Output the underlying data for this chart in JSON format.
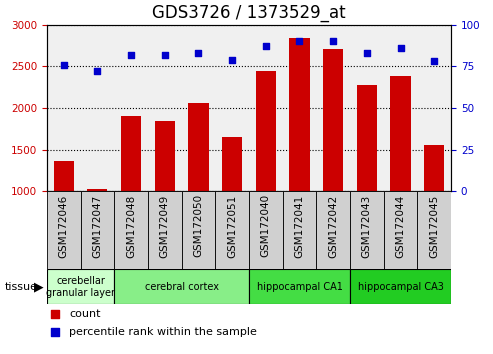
{
  "title": "GDS3726 / 1373529_at",
  "samples": [
    "GSM172046",
    "GSM172047",
    "GSM172048",
    "GSM172049",
    "GSM172050",
    "GSM172051",
    "GSM172040",
    "GSM172041",
    "GSM172042",
    "GSM172043",
    "GSM172044",
    "GSM172045"
  ],
  "counts": [
    1360,
    1030,
    1900,
    1840,
    2060,
    1650,
    2440,
    2840,
    2710,
    2280,
    2390,
    1550
  ],
  "percentiles": [
    76,
    72,
    82,
    82,
    83,
    79,
    87,
    90,
    90,
    83,
    86,
    78
  ],
  "bar_color": "#cc0000",
  "dot_color": "#0000cc",
  "ylim_left": [
    1000,
    3000
  ],
  "ylim_right": [
    0,
    100
  ],
  "yticks_left": [
    1000,
    1500,
    2000,
    2500,
    3000
  ],
  "yticks_right": [
    0,
    25,
    50,
    75,
    100
  ],
  "tissue_groups": [
    {
      "label": "cerebellar\ngranular layer",
      "start": 0,
      "end": 2,
      "color": "#ccffcc"
    },
    {
      "label": "cerebral cortex",
      "start": 2,
      "end": 6,
      "color": "#88ee88"
    },
    {
      "label": "hippocampal CA1",
      "start": 6,
      "end": 9,
      "color": "#44dd44"
    },
    {
      "label": "hippocampal CA3",
      "start": 9,
      "end": 12,
      "color": "#22cc22"
    }
  ],
  "tissue_label": "tissue",
  "legend_count_label": "count",
  "legend_pct_label": "percentile rank within the sample",
  "bg_color": "#ffffff",
  "sample_box_color": "#d0d0d0",
  "grid_color": "#000000",
  "title_fontsize": 12,
  "tick_fontsize": 7.5,
  "label_fontsize": 8
}
